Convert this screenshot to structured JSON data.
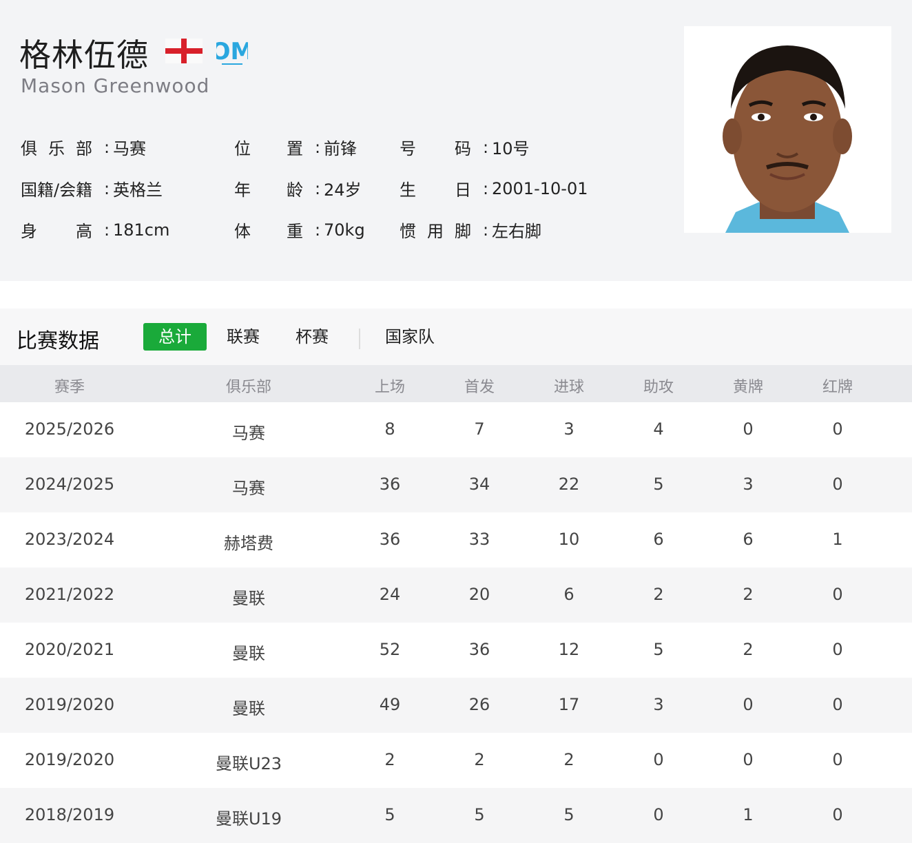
{
  "player": {
    "name_cn": "格林伍德",
    "name_en": "Mason Greenwood",
    "nation_flag": "england-flag-icon",
    "club_logo": "olympique-marseille-logo",
    "club_logo_text": "OM",
    "info": [
      [
        {
          "label": "俱乐部",
          "value": "马赛"
        },
        {
          "label": "位置",
          "value": "前锋"
        },
        {
          "label": "号码",
          "value": "10号"
        }
      ],
      [
        {
          "label": "国籍/会籍",
          "value": "英格兰"
        },
        {
          "label": "年龄",
          "value": "24岁"
        },
        {
          "label": "生日",
          "value": "2001-10-01"
        }
      ],
      [
        {
          "label": "身高",
          "value": "181cm"
        },
        {
          "label": "体重",
          "value": "70kg"
        },
        {
          "label": "惯用脚",
          "value": "左右脚"
        }
      ]
    ]
  },
  "stats": {
    "title": "比赛数据",
    "tabs": [
      {
        "label": "总计",
        "active": true
      },
      {
        "label": "联赛"
      },
      {
        "label": "杯赛"
      },
      {
        "label": "国家队"
      }
    ],
    "accent": "#1aaa3a",
    "columns": [
      "赛季",
      "俱乐部",
      "上场",
      "首发",
      "进球",
      "助攻",
      "黄牌",
      "红牌"
    ],
    "rows": [
      [
        "2025/2026",
        "马赛",
        "8",
        "7",
        "3",
        "4",
        "0",
        "0"
      ],
      [
        "2024/2025",
        "马赛",
        "36",
        "34",
        "22",
        "5",
        "3",
        "0"
      ],
      [
        "2023/2024",
        "赫塔费",
        "36",
        "33",
        "10",
        "6",
        "6",
        "1"
      ],
      [
        "2021/2022",
        "曼联",
        "24",
        "20",
        "6",
        "2",
        "2",
        "0"
      ],
      [
        "2020/2021",
        "曼联",
        "52",
        "36",
        "12",
        "5",
        "2",
        "0"
      ],
      [
        "2019/2020",
        "曼联",
        "49",
        "26",
        "17",
        "3",
        "0",
        "0"
      ],
      [
        "2019/2020",
        "曼联U23",
        "2",
        "2",
        "2",
        "0",
        "0",
        "0"
      ],
      [
        "2018/2019",
        "曼联U19",
        "5",
        "5",
        "5",
        "0",
        "1",
        "0"
      ]
    ]
  }
}
